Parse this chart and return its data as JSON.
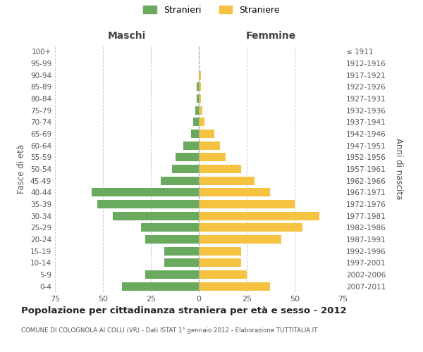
{
  "age_groups": [
    "0-4",
    "5-9",
    "10-14",
    "15-19",
    "20-24",
    "25-29",
    "30-34",
    "35-39",
    "40-44",
    "45-49",
    "50-54",
    "55-59",
    "60-64",
    "65-69",
    "70-74",
    "75-79",
    "80-84",
    "85-89",
    "90-94",
    "95-99",
    "100+"
  ],
  "birth_years": [
    "2007-2011",
    "2002-2006",
    "1997-2001",
    "1992-1996",
    "1987-1991",
    "1982-1986",
    "1977-1981",
    "1972-1976",
    "1967-1971",
    "1962-1966",
    "1957-1961",
    "1952-1956",
    "1947-1951",
    "1942-1946",
    "1937-1941",
    "1932-1936",
    "1927-1931",
    "1922-1926",
    "1917-1921",
    "1912-1916",
    "≤ 1911"
  ],
  "males": [
    40,
    28,
    18,
    18,
    28,
    30,
    45,
    53,
    56,
    20,
    14,
    12,
    8,
    4,
    3,
    2,
    1,
    1,
    0,
    0,
    0
  ],
  "females": [
    37,
    25,
    22,
    22,
    43,
    54,
    63,
    50,
    37,
    29,
    22,
    14,
    11,
    8,
    3,
    2,
    1,
    1,
    1,
    0,
    0
  ],
  "male_color": "#6aaa5f",
  "female_color": "#f5c242",
  "background_color": "#ffffff",
  "grid_color": "#cccccc",
  "dashed_line_color": "#aaaaaa",
  "title": "Popolazione per cittadinanza straniera per età e sesso - 2012",
  "subtitle": "COMUNE DI COLOGNOLA AI COLLI (VR) - Dati ISTAT 1° gennaio 2012 - Elaborazione TUTTITALIA.IT",
  "xlabel_left": "Maschi",
  "xlabel_right": "Femmine",
  "ylabel_left": "Fasce di età",
  "ylabel_right": "Anni di nascita",
  "legend_male": "Stranieri",
  "legend_female": "Straniere",
  "xlim": 75
}
